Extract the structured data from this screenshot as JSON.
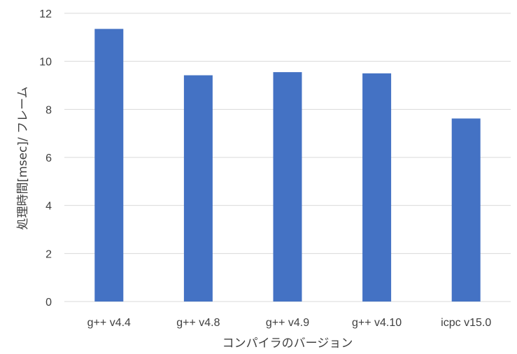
{
  "chart_data": {
    "type": "bar",
    "title": "",
    "xlabel": "コンパイラのバージョン",
    "ylabel": "処理時間[msec]/ フレーム",
    "categories": [
      "g++ v4.4",
      "g++ v4.8",
      "g++ v4.9",
      "g++ v4.10",
      "icpc v15.0"
    ],
    "series": [
      {
        "values": [
          11.35,
          9.42,
          9.55,
          9.5,
          7.62
        ]
      }
    ],
    "ylim": [
      0,
      12
    ],
    "yticks": [
      0,
      2,
      4,
      6,
      8,
      10,
      12
    ],
    "grid": true,
    "legend": "none",
    "colors": {
      "bar": "#4472C4",
      "grid": "#d9d9d9",
      "text": "#404040"
    }
  }
}
